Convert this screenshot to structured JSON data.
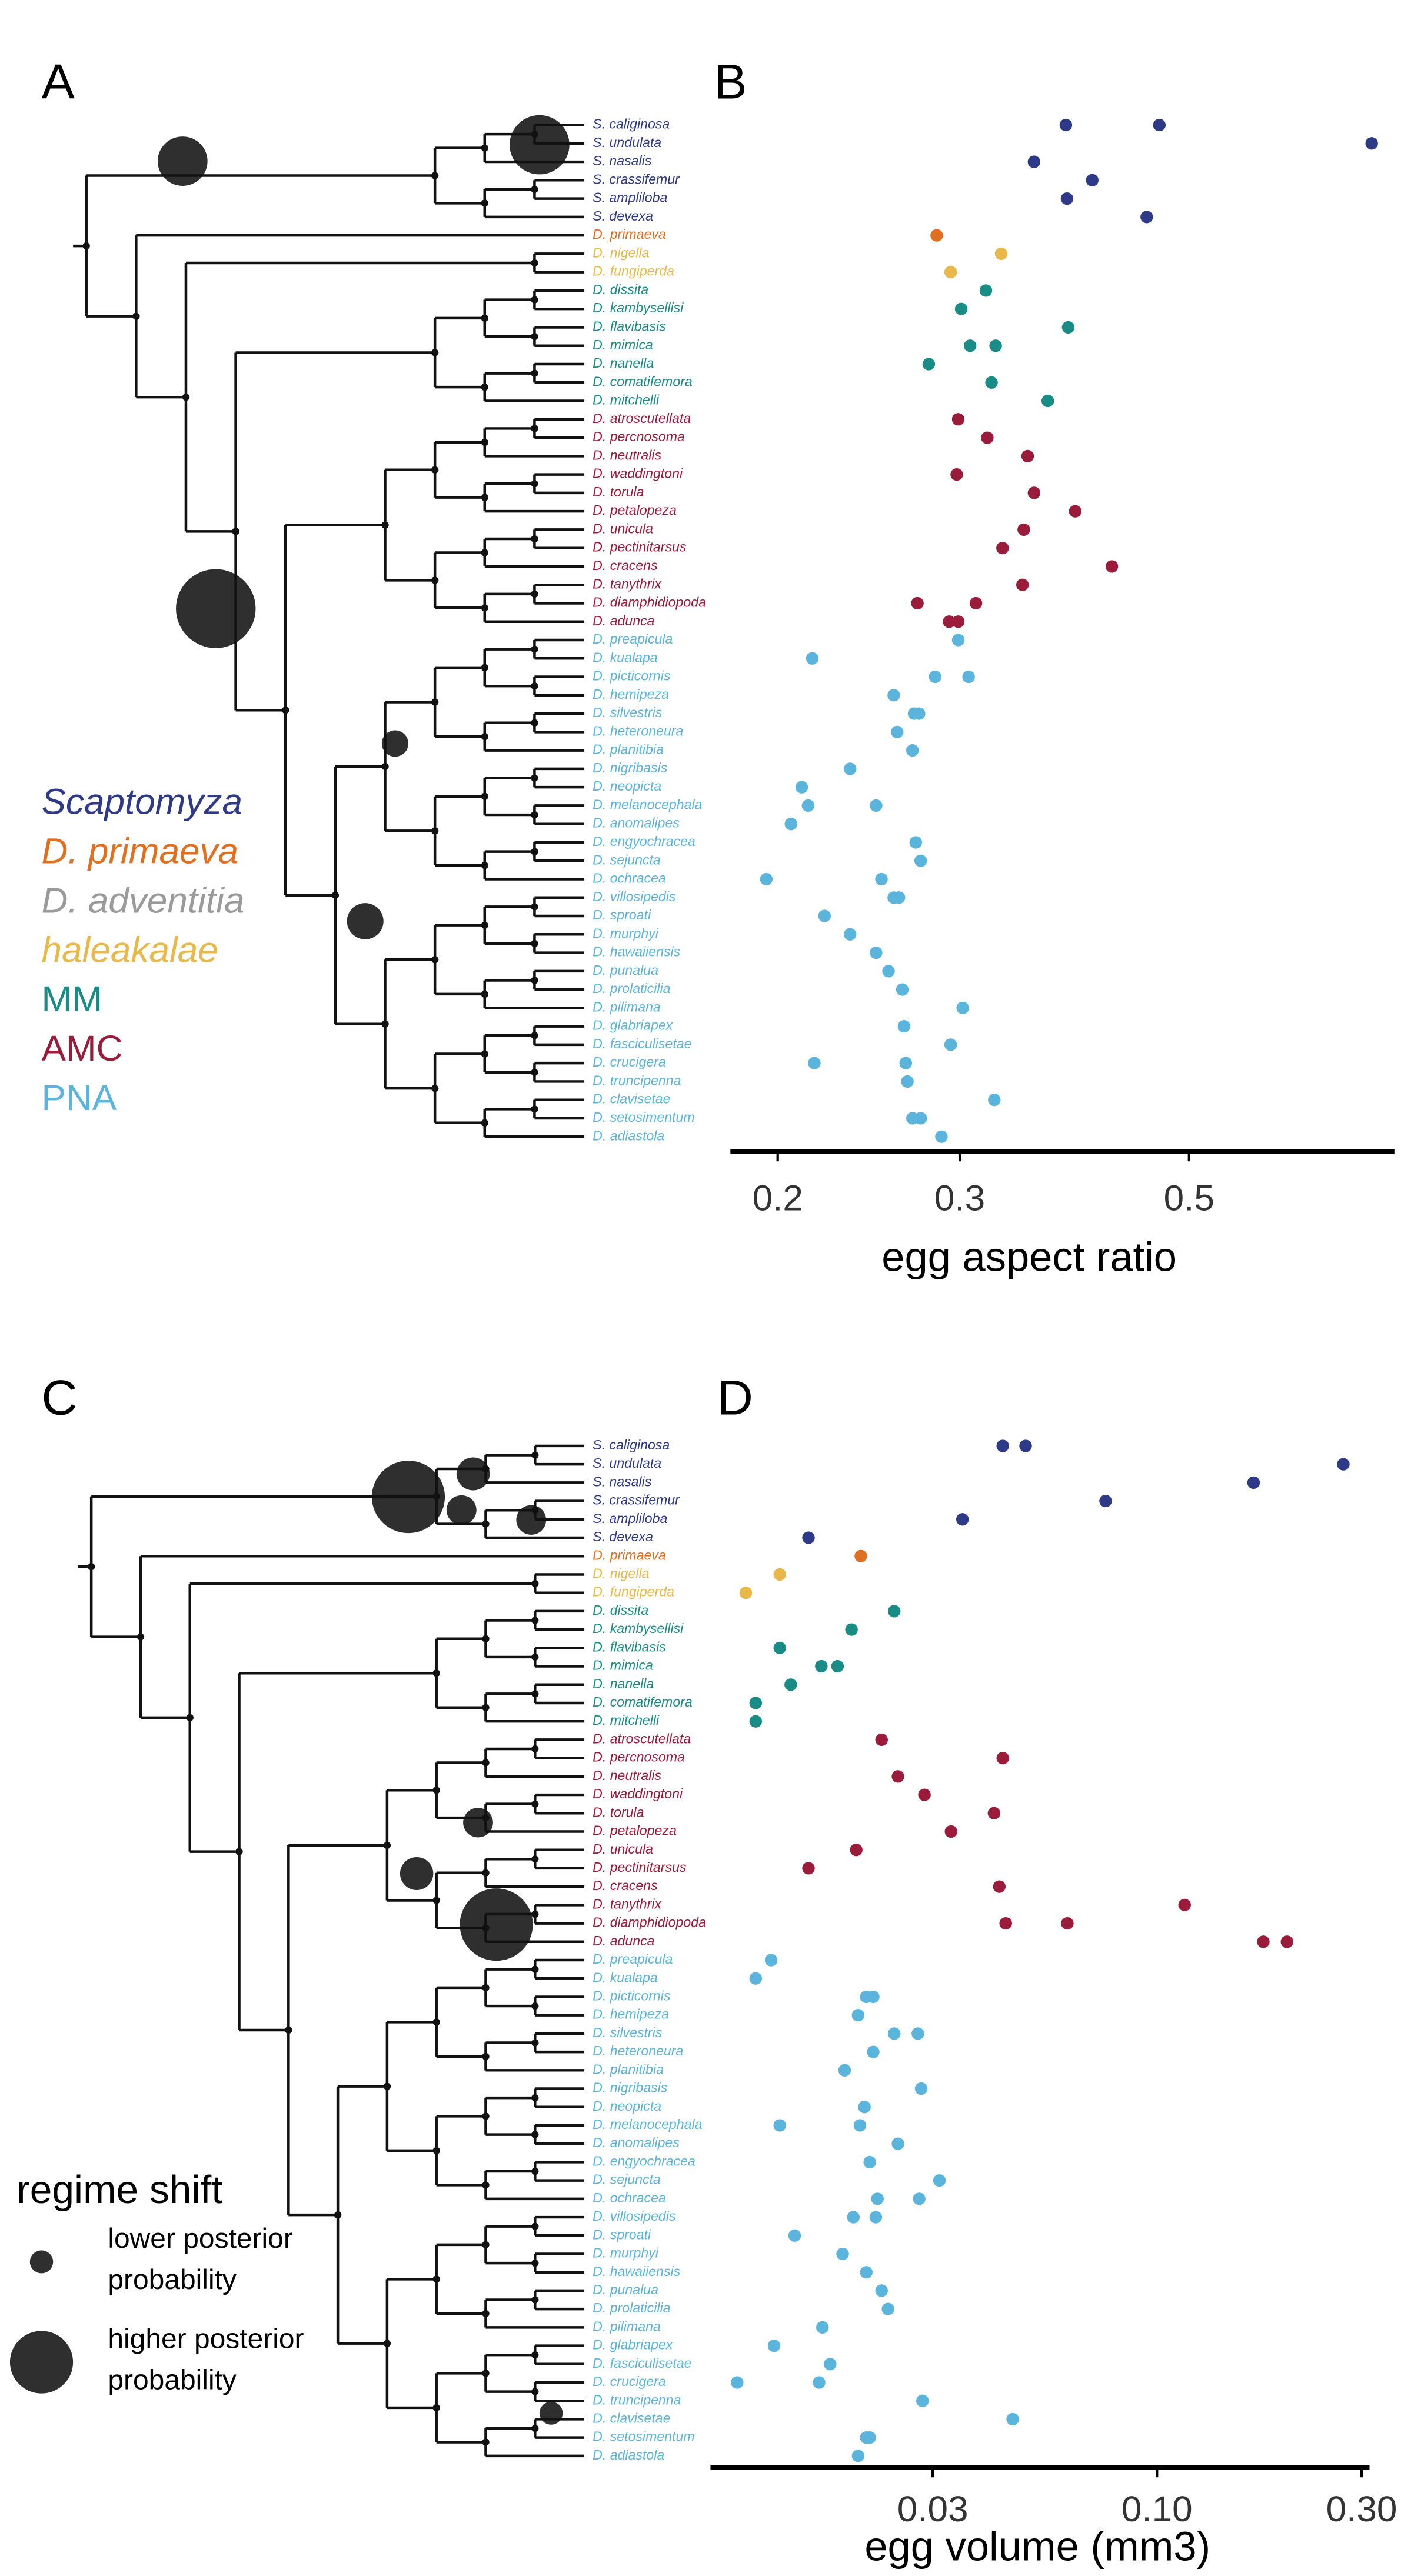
{
  "chart_data": [
    {
      "type": "scatter",
      "tree_panel": "A",
      "panel": "B",
      "x_label": "egg aspect ratio",
      "xscale": "log",
      "xlim": [
        0.18,
        0.79
      ],
      "xticks": [
        0.2,
        0.3,
        0.5
      ],
      "categories": [
        "S. caliginosa",
        "S. undulata",
        "S. nasalis",
        "S. crassifemur",
        "S. ampliloba",
        "S. devexa",
        "D. primaeva",
        "D. nigella",
        "D. fungiperda",
        "D. dissita",
        "D. kambysellisi",
        "D. flavibasis",
        "D. mimica",
        "D. nanella",
        "D. comatifemora",
        "D. mitchelli",
        "D. atroscutellata",
        "D. percnosoma",
        "D. neutralis",
        "D. waddingtoni",
        "D. torula",
        "D. petalopeza",
        "D. unicula",
        "D. pectinitarsus",
        "D. cracens",
        "D. tanythrix",
        "D. diamphidiopoda",
        "D. adunca",
        "D. preapicula",
        "D. kualapa",
        "D. picticornis",
        "D. hemipeza",
        "D. silvestris",
        "D. heteroneura",
        "D. planitibia",
        "D. nigribasis",
        "D. neopicta",
        "D. melanocephala",
        "D. anomalipes",
        "D. engyochracea",
        "D. sejuncta",
        "D. ochracea",
        "D. villosipedis",
        "D. sproati",
        "D. murphyi",
        "D. hawaiiensis",
        "D. punalua",
        "D. prolaticilia",
        "D. pilimana",
        "D. glabriapex",
        "D. fasciculisetae",
        "D. crucigera",
        "D. truncipenna",
        "D. clavisetae",
        "D. setosimentum",
        "D. adiastola"
      ],
      "series": [
        {
          "name": "Scaptomyza",
          "color": "#2e3a87",
          "species": [
            "S. caliginosa",
            "S. caliginosa",
            "S. undulata",
            "S. nasalis",
            "S. crassifemur",
            "S. ampliloba",
            "S. devexa"
          ],
          "values": [
            0.38,
            0.468,
            0.751,
            0.354,
            0.403,
            0.381,
            0.455
          ]
        },
        {
          "name": "D. primaeva",
          "color": "#e07020",
          "species": [
            "D. primaeva"
          ],
          "values": [
            0.285
          ]
        },
        {
          "name": "D. adventitia",
          "color": "#9a9a9a",
          "species": [],
          "values": []
        },
        {
          "name": "haleakalae",
          "color": "#e8b84a",
          "species": [
            "D. nigella",
            "D. fungiperda"
          ],
          "values": [
            0.329,
            0.294
          ]
        },
        {
          "name": "MM",
          "color": "#1a8c86",
          "species": [
            "D. dissita",
            "D. kambysellisi",
            "D. flavibasis",
            "D. mimica",
            "D. mimica",
            "D. nanella",
            "D. comatifemora",
            "D. mitchelli"
          ],
          "values": [
            0.318,
            0.301,
            0.382,
            0.307,
            0.325,
            0.28,
            0.322,
            0.365
          ]
        },
        {
          "name": "AMC",
          "color": "#9b1b3b",
          "species": [
            "D. atroscutellata",
            "D. percnosoma",
            "D. neutralis",
            "D. waddingtoni",
            "D. torula",
            "D. petalopeza",
            "D. unicula",
            "D. pectinitarsus",
            "D. cracens",
            "D. tanythrix",
            "D. diamphidiopoda",
            "D. diamphidiopoda",
            "D. adunca",
            "D. adunca"
          ],
          "values": [
            0.299,
            0.319,
            0.349,
            0.298,
            0.354,
            0.388,
            0.346,
            0.33,
            0.421,
            0.345,
            0.273,
            0.311,
            0.293,
            0.299
          ]
        },
        {
          "name": "PNA",
          "color": "#5ab4dc",
          "species": [
            "D. preapicula",
            "D. kualapa",
            "D. picticornis",
            "D. picticornis",
            "D. hemipeza",
            "D. silvestris",
            "D. silvestris",
            "D. heteroneura",
            "D. planitibia",
            "D. nigribasis",
            "D. neopicta",
            "D. melanocephala",
            "D. melanocephala",
            "D. anomalipes",
            "D. engyochracea",
            "D. sejuncta",
            "D. ochracea",
            "D. ochracea",
            "D. villosipedis",
            "D. villosipedis",
            "D. sproati",
            "D. murphyi",
            "D. hawaiiensis",
            "D. punalua",
            "D. prolaticilia",
            "D. pilimana",
            "D. glabriapex",
            "D. fasciculisetae",
            "D. crucigera",
            "D. crucigera",
            "D. truncipenna",
            "D. clavisetae",
            "D. setosimentum",
            "D. setosimentum",
            "D. adiastola"
          ],
          "values": [
            0.299,
            0.216,
            0.284,
            0.306,
            0.259,
            0.271,
            0.274,
            0.261,
            0.27,
            0.235,
            0.211,
            0.214,
            0.249,
            0.206,
            0.272,
            0.275,
            0.195,
            0.252,
            0.259,
            0.262,
            0.222,
            0.235,
            0.249,
            0.256,
            0.264,
            0.302,
            0.265,
            0.294,
            0.217,
            0.266,
            0.267,
            0.324,
            0.27,
            0.275,
            0.288
          ]
        }
      ]
    },
    {
      "type": "scatter",
      "tree_panel": "C",
      "panel": "D",
      "x_label": "egg volume (mm3)",
      "xscale": "log",
      "xlim": [
        0.0091,
        0.313
      ],
      "xticks": [
        0.03,
        {
          "value": 0.1,
          "label": "0.10"
        },
        {
          "value": 0.3,
          "label": "0.30"
        }
      ],
      "categories": [
        "S. caliginosa",
        "S. undulata",
        "S. nasalis",
        "S. crassifemur",
        "S. ampliloba",
        "S. devexa",
        "D. primaeva",
        "D. nigella",
        "D. fungiperda",
        "D. dissita",
        "D. kambysellisi",
        "D. flavibasis",
        "D. mimica",
        "D. nanella",
        "D. comatifemora",
        "D. mitchelli",
        "D. atroscutellata",
        "D. percnosoma",
        "D. neutralis",
        "D. waddingtoni",
        "D. torula",
        "D. petalopeza",
        "D. unicula",
        "D. pectinitarsus",
        "D. cracens",
        "D. tanythrix",
        "D. diamphidiopoda",
        "D. adunca",
        "D. preapicula",
        "D. kualapa",
        "D. picticornis",
        "D. hemipeza",
        "D. silvestris",
        "D. heteroneura",
        "D. planitibia",
        "D. nigribasis",
        "D. neopicta",
        "D. melanocephala",
        "D. anomalipes",
        "D. engyochracea",
        "D. sejuncta",
        "D. ochracea",
        "D. villosipedis",
        "D. sproati",
        "D. murphyi",
        "D. hawaiiensis",
        "D. punalua",
        "D. prolaticilia",
        "D. pilimana",
        "D. glabriapex",
        "D. fasciculisetae",
        "D. crucigera",
        "D. truncipenna",
        "D. clavisetae",
        "D. setosimentum",
        "D. adiastola"
      ],
      "series": [
        {
          "color": "#2e3a87",
          "species": [
            "S. caliginosa",
            "S. caliginosa",
            "S. undulata",
            "S. nasalis",
            "S. crassifemur",
            "S. ampliloba",
            "S. devexa"
          ],
          "values": [
            0.0437,
            0.0494,
            0.272,
            0.168,
            0.0759,
            0.0352,
            0.0154
          ]
        },
        {
          "color": "#e07020",
          "species": [
            "D. primaeva"
          ],
          "values": [
            0.0204
          ]
        },
        {
          "color": "#9a9a9a",
          "species": [],
          "values": []
        },
        {
          "color": "#e8b84a",
          "species": [
            "D. nigella",
            "D. fungiperda"
          ],
          "values": [
            0.0132,
            0.011
          ]
        },
        {
          "color": "#1a8c86",
          "species": [
            "D. dissita",
            "D. kambysellisi",
            "D. flavibasis",
            "D. mimica",
            "D. mimica",
            "D. nanella",
            "D. comatifemora",
            "D. mitchelli"
          ],
          "values": [
            0.0244,
            0.0194,
            0.0132,
            0.0165,
            0.018,
            0.014,
            0.0116,
            0.0116
          ]
        },
        {
          "color": "#9b1b3b",
          "species": [
            "D. atroscutellata",
            "D. percnosoma",
            "D. neutralis",
            "D. waddingtoni",
            "D. torula",
            "D. petalopeza",
            "D. unicula",
            "D. pectinitarsus",
            "D. cracens",
            "D. tanythrix",
            "D. diamphidiopoda",
            "D. diamphidiopoda",
            "D. adunca",
            "D. adunca"
          ],
          "values": [
            0.0228,
            0.0437,
            0.0249,
            0.0287,
            0.0417,
            0.0331,
            0.0199,
            0.0154,
            0.0429,
            0.116,
            0.0444,
            0.0618,
            0.177,
            0.201
          ]
        },
        {
          "color": "#5ab4dc",
          "species": [
            "D. preapicula",
            "D. kualapa",
            "D. picticornis",
            "D. picticornis",
            "D. hemipeza",
            "D. silvestris",
            "D. silvestris",
            "D. heteroneura",
            "D. planitibia",
            "D. nigribasis",
            "D. neopicta",
            "D. melanocephala",
            "D. melanocephala",
            "D. anomalipes",
            "D. engyochracea",
            "D. sejuncta",
            "D. ochracea",
            "D. ochracea",
            "D. villosipedis",
            "D. villosipedis",
            "D. sproati",
            "D. murphyi",
            "D. hawaiiensis",
            "D. punalua",
            "D. prolaticilia",
            "D. pilimana",
            "D. glabriapex",
            "D. fasciculisetae",
            "D. crucigera",
            "D. crucigera",
            "D. truncipenna",
            "D. clavisetae",
            "D. setosimentum",
            "D. setosimentum",
            "D. adiastola"
          ],
          "values": [
            0.0126,
            0.0116,
            0.021,
            0.0218,
            0.0201,
            0.0244,
            0.0277,
            0.0218,
            0.0187,
            0.0282,
            0.0208,
            0.0132,
            0.0203,
            0.0249,
            0.0214,
            0.0311,
            0.0223,
            0.0279,
            0.0196,
            0.0221,
            0.0143,
            0.0185,
            0.021,
            0.0228,
            0.0236,
            0.0166,
            0.0128,
            0.0173,
            0.0105,
            0.0163,
            0.0284,
            0.0461,
            0.021,
            0.0214,
            0.0201
          ]
        }
      ]
    }
  ],
  "regime_legend": {
    "title": "regime shift",
    "items": [
      [
        "lower posterior",
        "probability"
      ],
      [
        "higher posterior",
        "probability"
      ]
    ]
  }
}
